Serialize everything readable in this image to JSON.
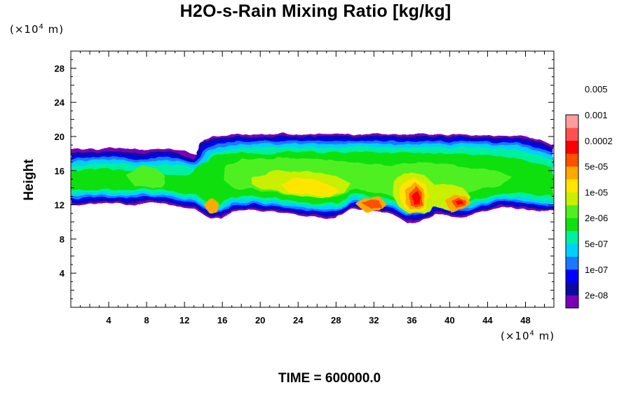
{
  "title": "H2O-s-Rain Mixing Ratio [kg/kg]",
  "y_unit": {
    "prefix": "(×10",
    "exp": "4",
    "suffix": " m)"
  },
  "x_unit": {
    "prefix": "(×10",
    "exp": "4",
    "suffix": " m)"
  },
  "time_label": "TIME = 600000.0",
  "chart_data": {
    "type": "heatmap",
    "title": "H2O-s-Rain Mixing Ratio [kg/kg]",
    "xlabel": "",
    "ylabel": "Height",
    "x_unit": "×10^4 m",
    "y_unit": "×10^4 m",
    "xlim": [
      0,
      51
    ],
    "ylim": [
      0,
      30
    ],
    "x_ticks": [
      4,
      8,
      12,
      16,
      20,
      24,
      28,
      32,
      36,
      40,
      44,
      48
    ],
    "y_ticks": [
      4,
      8,
      12,
      16,
      20,
      24,
      28
    ],
    "grid": false,
    "legend_position": "right",
    "colorbar": {
      "levels": [
        "2e-08",
        "1e-07",
        "5e-07",
        "2e-06",
        "1e-05",
        "5e-05",
        "0.0002",
        "0.001",
        "0.005"
      ],
      "colors": [
        "#7a00b8",
        "#0a0aa0",
        "#0000ff",
        "#1a78ff",
        "#00d0ff",
        "#00f0a0",
        "#10e010",
        "#50f020",
        "#c8f000",
        "#ffe600",
        "#ffaa00",
        "#ff5000",
        "#ff0000",
        "#ff5050",
        "#ff9c9c"
      ]
    },
    "time": "600000.0"
  }
}
